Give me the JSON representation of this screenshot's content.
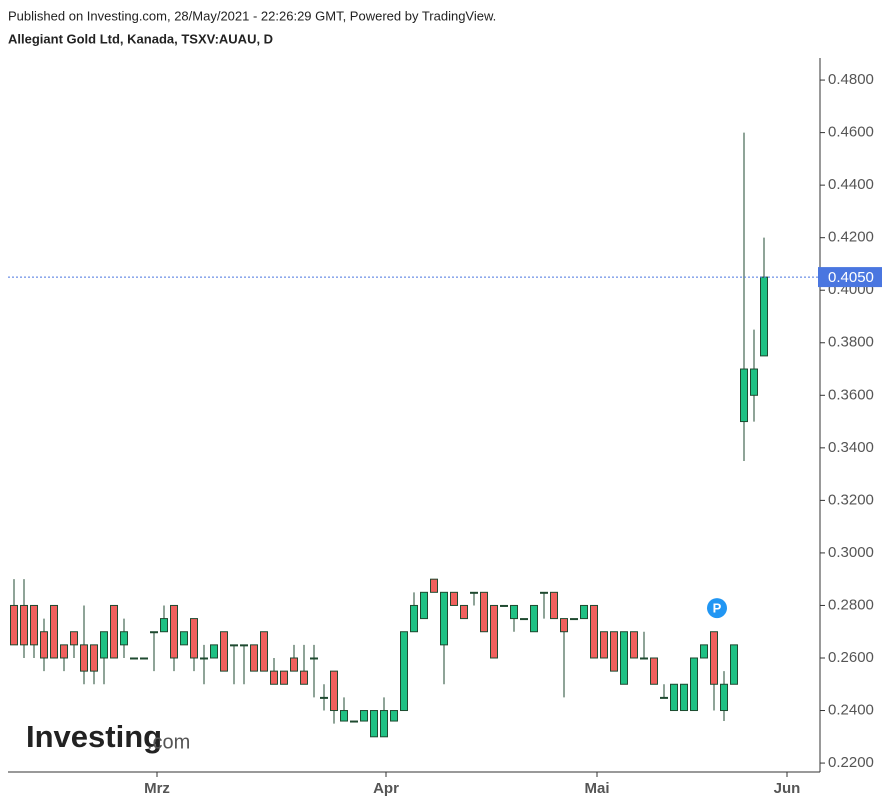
{
  "header": {
    "published": "Published on Investing.com, 28/May/2021 - 22:26:29 GMT, Powered by TradingView.",
    "instrument": "Allegiant Gold Ltd, Kanada, TSXV:AUAU, D"
  },
  "logo": {
    "brand": "Investing",
    "suffix": ".com"
  },
  "chart_data": {
    "type": "candlestick",
    "up_color": "#1fc184",
    "down_color": "#f0605d",
    "wick_color": "#1f4a30",
    "open": [
      0.28,
      0.28,
      0.28,
      0.27,
      0.28,
      0.265,
      0.27,
      0.265,
      0.265,
      0.26,
      0.28,
      0.265,
      0.26,
      0.26,
      0.27,
      0.27,
      0.28,
      0.265,
      0.275,
      0.26,
      0.26,
      0.27,
      0.265,
      0.265,
      0.265,
      0.27,
      0.255,
      0.255,
      0.26,
      0.255,
      0.26,
      0.245,
      0.255,
      0.236,
      0.236,
      0.236,
      0.23,
      0.23,
      0.236,
      0.24,
      0.27,
      0.275,
      0.29,
      0.265,
      0.285,
      0.28,
      0.285,
      0.285,
      0.28,
      0.28,
      0.275,
      0.275,
      0.27,
      0.285,
      0.285,
      0.275,
      0.275,
      0.275,
      0.28,
      0.27,
      0.27,
      0.25,
      0.27,
      0.26,
      0.26,
      0.245,
      0.24,
      0.24,
      0.24,
      0.26,
      0.27,
      0.24,
      0.25,
      0.35,
      0.36,
      0.375
    ],
    "high": [
      0.29,
      0.29,
      0.28,
      0.275,
      0.28,
      0.265,
      0.27,
      0.28,
      0.265,
      0.27,
      0.28,
      0.275,
      0.26,
      0.26,
      0.27,
      0.28,
      0.28,
      0.27,
      0.275,
      0.265,
      0.265,
      0.27,
      0.265,
      0.265,
      0.265,
      0.27,
      0.26,
      0.255,
      0.265,
      0.265,
      0.265,
      0.25,
      0.255,
      0.245,
      0.236,
      0.24,
      0.24,
      0.245,
      0.24,
      0.27,
      0.285,
      0.285,
      0.29,
      0.285,
      0.285,
      0.28,
      0.285,
      0.285,
      0.28,
      0.28,
      0.28,
      0.275,
      0.28,
      0.285,
      0.285,
      0.275,
      0.275,
      0.28,
      0.28,
      0.27,
      0.27,
      0.27,
      0.27,
      0.27,
      0.26,
      0.25,
      0.25,
      0.25,
      0.26,
      0.265,
      0.27,
      0.255,
      0.265,
      0.46,
      0.385,
      0.42
    ],
    "low": [
      0.265,
      0.26,
      0.26,
      0.255,
      0.26,
      0.255,
      0.26,
      0.25,
      0.25,
      0.25,
      0.26,
      0.26,
      0.26,
      0.26,
      0.255,
      0.27,
      0.255,
      0.265,
      0.255,
      0.25,
      0.26,
      0.255,
      0.25,
      0.25,
      0.255,
      0.255,
      0.25,
      0.25,
      0.255,
      0.25,
      0.245,
      0.24,
      0.235,
      0.236,
      0.236,
      0.236,
      0.23,
      0.23,
      0.236,
      0.24,
      0.27,
      0.275,
      0.285,
      0.25,
      0.28,
      0.275,
      0.28,
      0.27,
      0.26,
      0.28,
      0.27,
      0.275,
      0.27,
      0.275,
      0.275,
      0.245,
      0.275,
      0.275,
      0.26,
      0.26,
      0.255,
      0.25,
      0.26,
      0.26,
      0.25,
      0.245,
      0.24,
      0.24,
      0.24,
      0.26,
      0.24,
      0.236,
      0.25,
      0.335,
      0.35,
      0.375
    ],
    "close": [
      0.265,
      0.265,
      0.265,
      0.26,
      0.26,
      0.26,
      0.265,
      0.255,
      0.255,
      0.27,
      0.26,
      0.27,
      0.26,
      0.26,
      0.27,
      0.275,
      0.26,
      0.27,
      0.26,
      0.26,
      0.265,
      0.255,
      0.265,
      0.265,
      0.255,
      0.255,
      0.25,
      0.25,
      0.255,
      0.25,
      0.26,
      0.245,
      0.24,
      0.24,
      0.236,
      0.24,
      0.24,
      0.24,
      0.24,
      0.27,
      0.28,
      0.285,
      0.285,
      0.285,
      0.28,
      0.275,
      0.285,
      0.27,
      0.26,
      0.28,
      0.28,
      0.275,
      0.28,
      0.285,
      0.275,
      0.27,
      0.275,
      0.28,
      0.26,
      0.26,
      0.255,
      0.27,
      0.26,
      0.26,
      0.25,
      0.245,
      0.25,
      0.25,
      0.26,
      0.265,
      0.25,
      0.25,
      0.265,
      0.37,
      0.37,
      0.405
    ],
    "xlim": [
      -0.6,
      80.6
    ],
    "xticks": [
      {
        "value": 14.3,
        "label": "Mrz"
      },
      {
        "value": 37.2,
        "label": "Apr"
      },
      {
        "value": 58.3,
        "label": "Mai"
      },
      {
        "value": 77.3,
        "label": "Jun"
      }
    ],
    "ylim": [
      0.2166,
      0.4884
    ],
    "yticks": [
      {
        "value": 0.22,
        "label": "0.2200"
      },
      {
        "value": 0.24,
        "label": "0.2400"
      },
      {
        "value": 0.26,
        "label": "0.2600"
      },
      {
        "value": 0.28,
        "label": "0.2800"
      },
      {
        "value": 0.3,
        "label": "0.3000"
      },
      {
        "value": 0.32,
        "label": "0.3200"
      },
      {
        "value": 0.34,
        "label": "0.3400"
      },
      {
        "value": 0.36,
        "label": "0.3600"
      },
      {
        "value": 0.38,
        "label": "0.3800"
      },
      {
        "value": 0.4,
        "label": "0.4000"
      },
      {
        "value": 0.42,
        "label": "0.4200"
      },
      {
        "value": 0.44,
        "label": "0.4400"
      },
      {
        "value": 0.46,
        "label": "0.4600"
      },
      {
        "value": 0.48,
        "label": "0.4800"
      }
    ],
    "last_price": {
      "value": 0.405,
      "label": "0.4050",
      "color": "#4a76e0"
    },
    "marker": {
      "label": "P",
      "x": 70.3,
      "y": 0.279,
      "color": "#2196f3"
    }
  }
}
